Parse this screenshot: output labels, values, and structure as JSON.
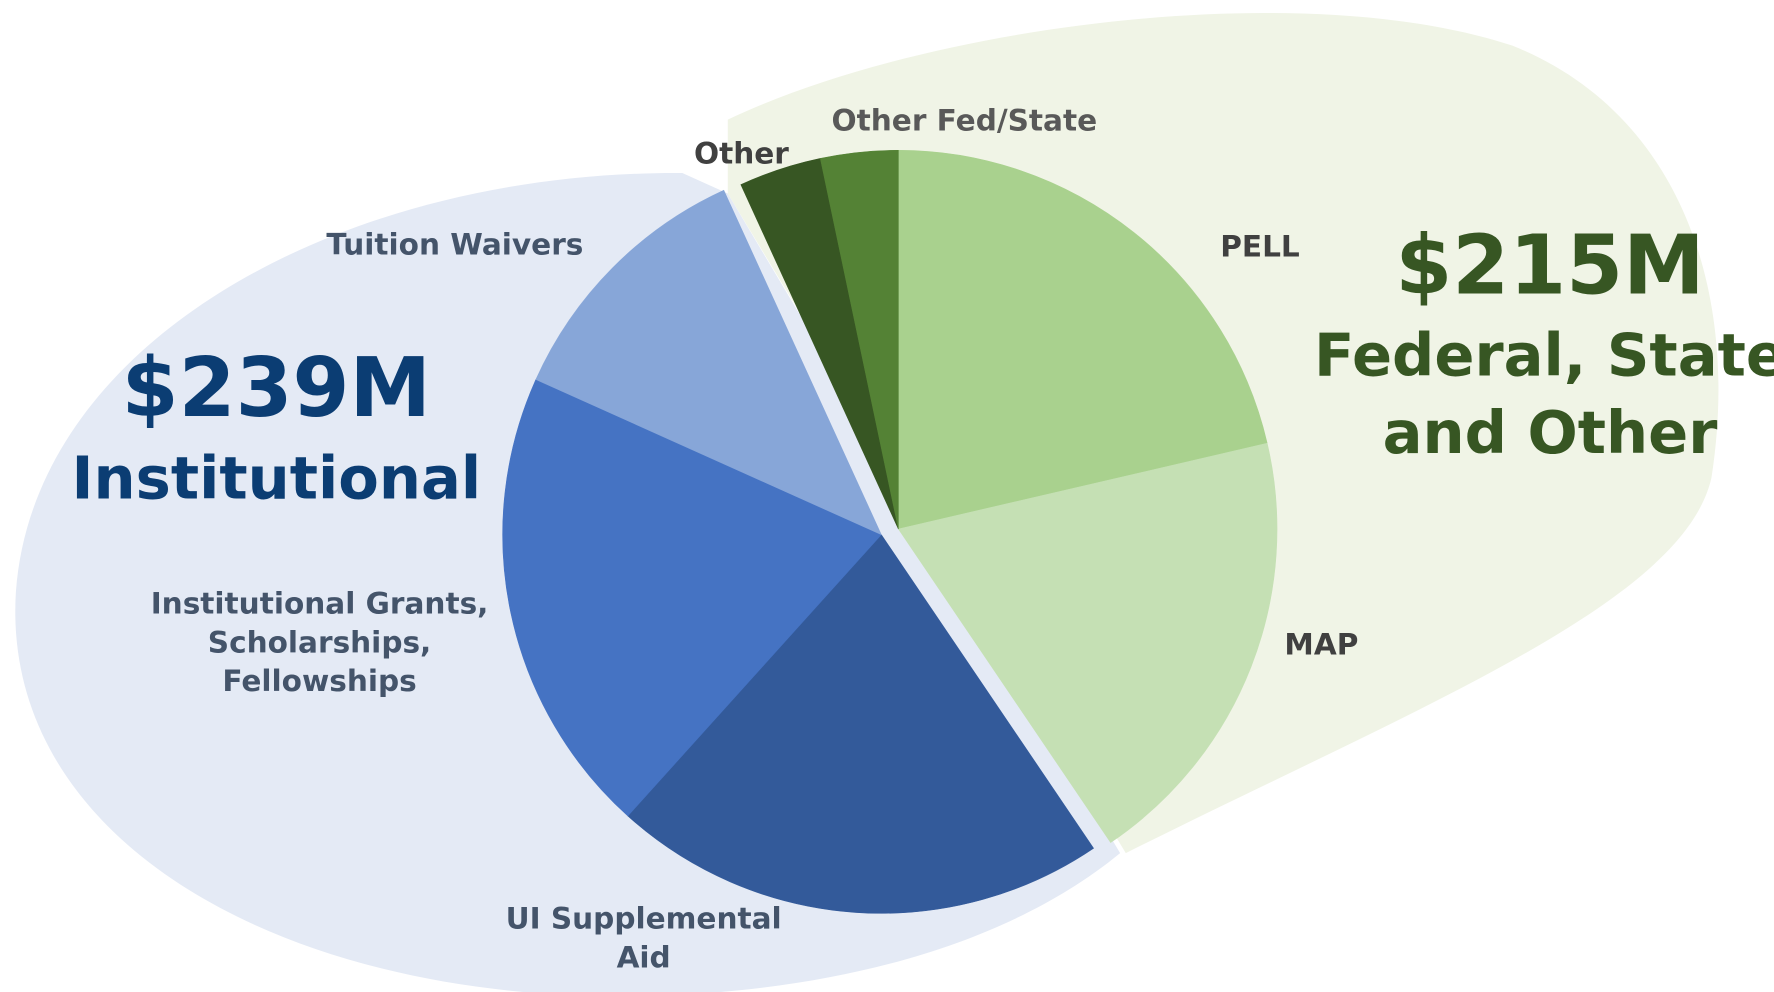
{
  "chart_data": {
    "type": "pie",
    "groups": [
      {
        "total": "$239M",
        "name": "Institutional",
        "color": "#0b3d73",
        "background": "#e4eaf5"
      },
      {
        "total": "$215M",
        "name": [
          "Federal, State",
          "and Other"
        ],
        "color": "#375623",
        "background": "#f0f4e6"
      }
    ],
    "slices": [
      {
        "label": [
          "PELL"
        ],
        "value": 97,
        "color": "#a9d18e",
        "group": 1
      },
      {
        "label": [
          "MAP"
        ],
        "value": 87,
        "color": "#c5e0b4",
        "group": 1
      },
      {
        "label": [
          "UI Supplemental",
          "Aid"
        ],
        "value": 96,
        "color": "#335a9a",
        "group": 0
      },
      {
        "label": [
          "Institutional Grants,",
          "Scholarships,",
          "Fellowships"
        ],
        "value": 91,
        "color": "#4573c3",
        "group": 0
      },
      {
        "label": [
          "Tuition Waivers"
        ],
        "value": 52,
        "color": "#87a6d8",
        "group": 0
      },
      {
        "label": [
          "Other"
        ],
        "value": 16,
        "color": "#375623",
        "group": 1
      },
      {
        "label": [
          "Other Fed/State"
        ],
        "value": 15,
        "color": "#548235",
        "group": 1
      }
    ]
  }
}
